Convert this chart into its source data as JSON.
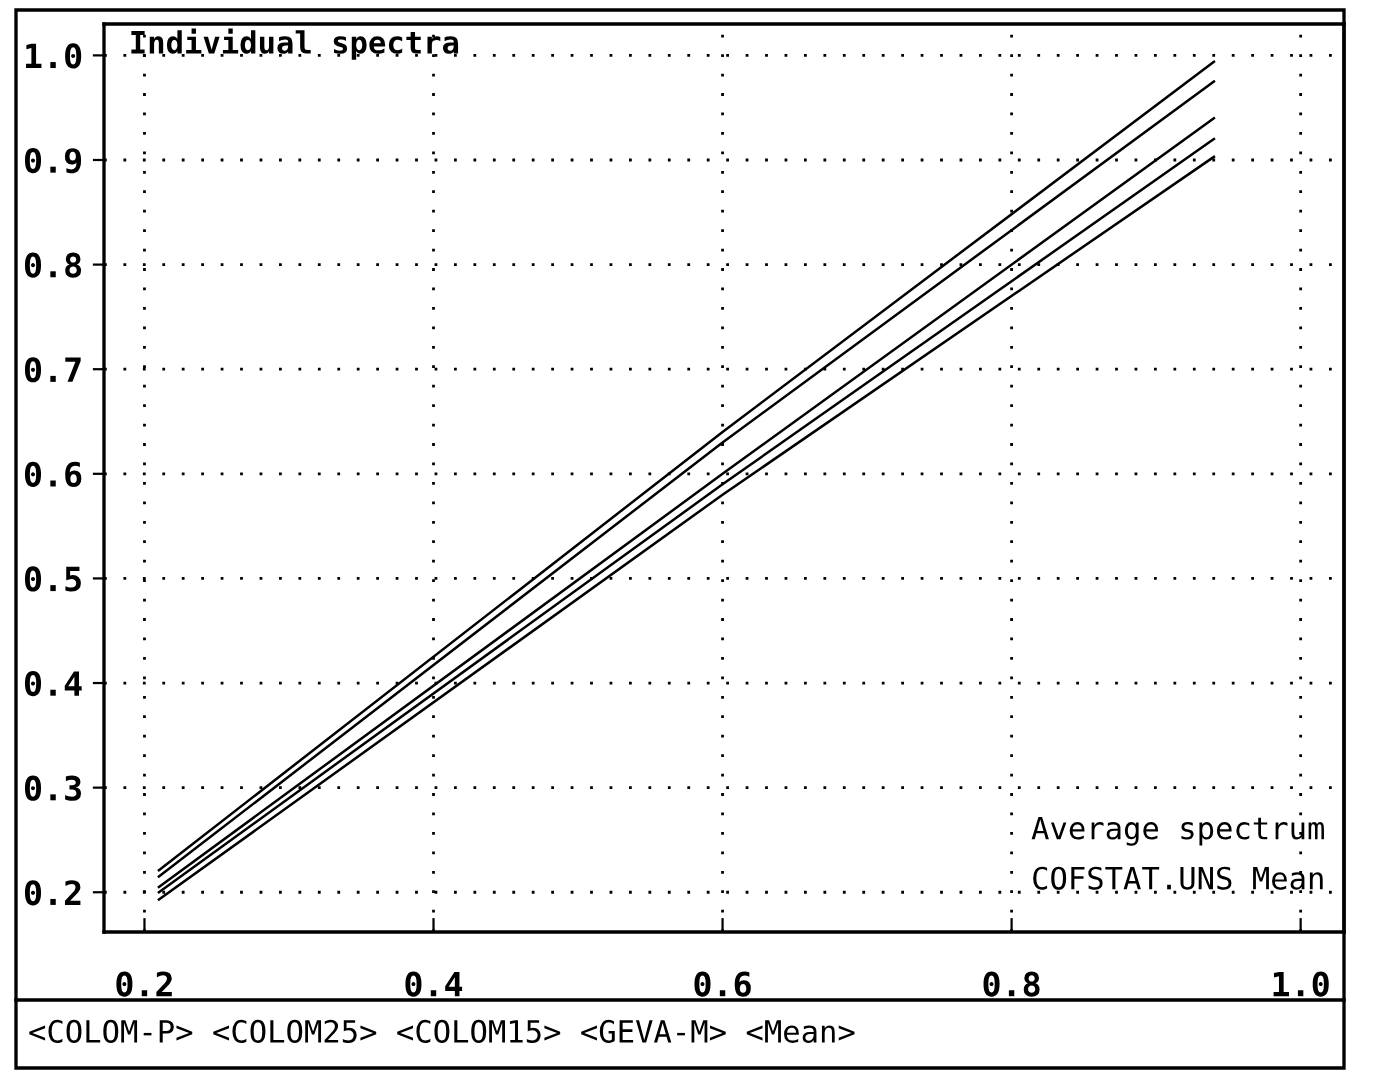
{
  "chart_data": {
    "type": "line",
    "title": "Individual spectra",
    "annotations": [
      "Average spectrum",
      "COFSTAT.UNS Mean",
      "<COLOM-P> <COLOM25> <COLOM15> <GEVA-M> <Mean>"
    ],
    "series": [
      {
        "color": "#000000",
        "x": [
          0.21,
          0.6,
          0.94
        ],
        "values": [
          0.221,
          0.64,
          0.994
        ]
      },
      {
        "color": "#000000",
        "x": [
          0.21,
          0.6,
          0.94
        ],
        "values": [
          0.215,
          0.63,
          0.975
        ]
      },
      {
        "color": "#000000",
        "x": [
          0.21,
          0.6,
          0.94
        ],
        "values": [
          0.205,
          0.6,
          0.94
        ]
      },
      {
        "color": "#000000",
        "x": [
          0.21,
          0.6,
          0.94
        ],
        "values": [
          0.2,
          0.59,
          0.92
        ]
      },
      {
        "color": "#000000",
        "x": [
          0.21,
          0.6,
          0.94
        ],
        "values": [
          0.193,
          0.58,
          0.903
        ]
      }
    ],
    "xlim": [
      0.172,
      1.03
    ],
    "ylim": [
      0.162,
      1.03
    ],
    "xticks": [
      0.2,
      0.4,
      0.6,
      0.8,
      {
        "value": 1,
        "label": "1.0"
      }
    ],
    "yticks": [
      0.2,
      0.3,
      0.4,
      0.5,
      0.6,
      0.7,
      0.8,
      0.9,
      {
        "value": 1,
        "label": "1.0"
      }
    ],
    "grid": true,
    "line_style": "solid",
    "marker": "none",
    "legend": false
  }
}
